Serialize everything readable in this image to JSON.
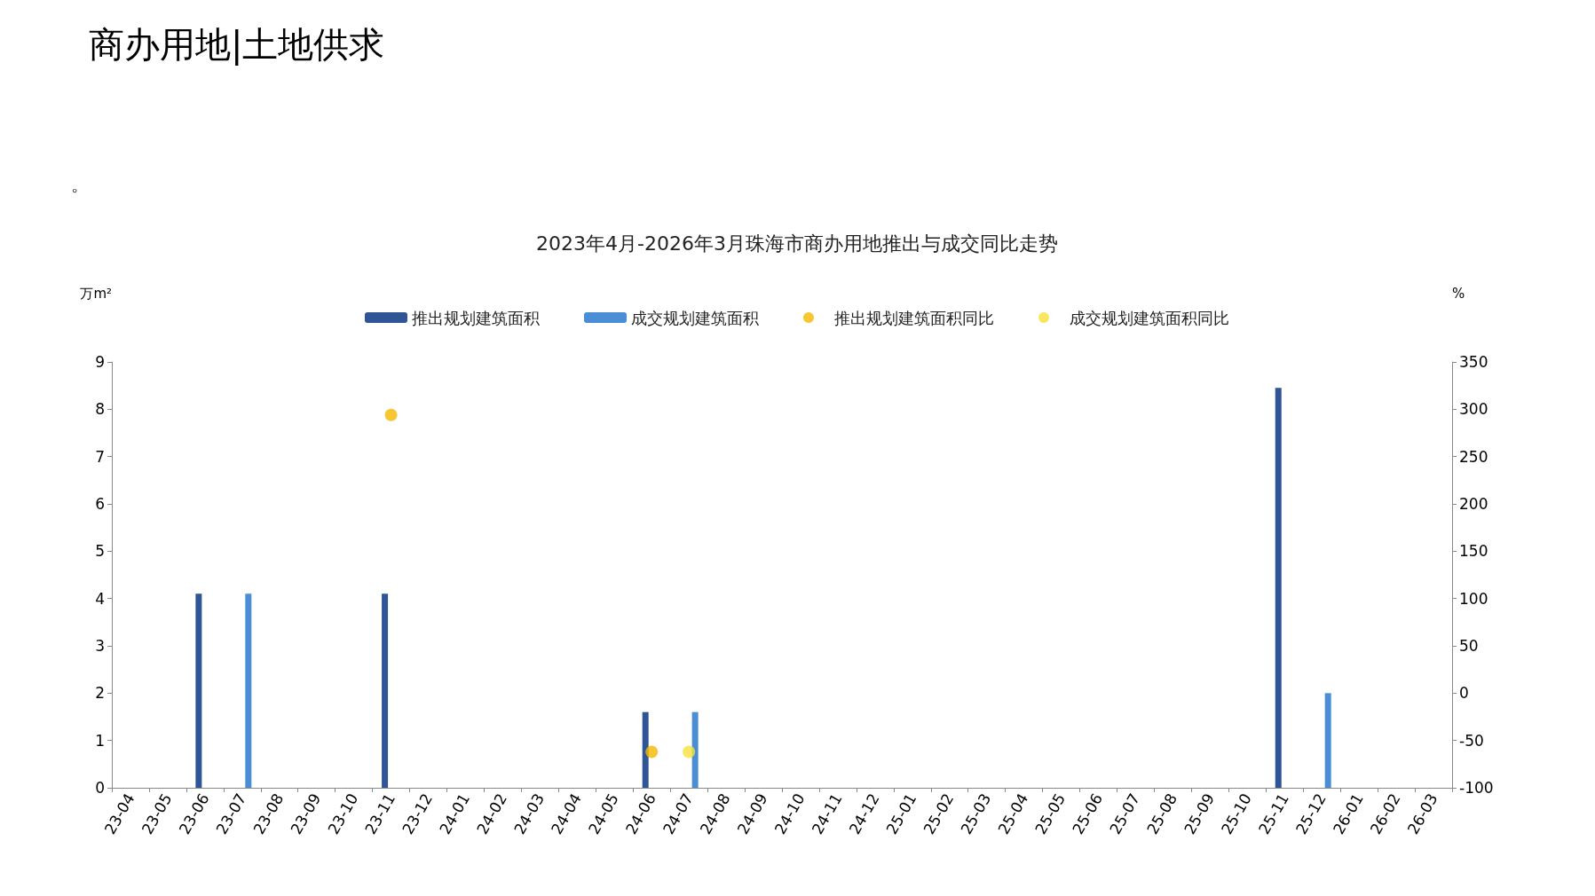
{
  "chart_data": {
    "type": "bar",
    "title": "2023年4月-2026年3月珠海市商办用地推出与成交同比走势",
    "annotations": [
      "商办用地|土地供求",
      "。"
    ],
    "ylabel": "万m²",
    "y2label": "%",
    "categories": [
      "23-04",
      "23-05",
      "23-06",
      "23-07",
      "23-08",
      "23-09",
      "23-10",
      "23-11",
      "23-12",
      "24-01",
      "24-02",
      "24-03",
      "24-04",
      "24-05",
      "24-06",
      "24-07",
      "24-08",
      "24-09",
      "24-10",
      "24-11",
      "24-12",
      "25-01",
      "25-02",
      "25-03",
      "25-04",
      "25-05",
      "25-06",
      "25-07",
      "25-08",
      "25-09",
      "25-10",
      "25-11",
      "25-12",
      "26-01",
      "26-02",
      "26-03"
    ],
    "series": [
      {
        "name": "推出规划建筑面积",
        "color": "#2f5597",
        "values": [
          null,
          null,
          4.1,
          null,
          null,
          null,
          null,
          4.1,
          null,
          null,
          null,
          null,
          null,
          null,
          1.6,
          null,
          null,
          null,
          null,
          null,
          null,
          null,
          null,
          null,
          null,
          null,
          null,
          null,
          null,
          null,
          null,
          8.45,
          null,
          null,
          null,
          null
        ]
      },
      {
        "name": "成交规划建筑面积",
        "color": "#4a8fd6",
        "values": [
          null,
          null,
          null,
          4.1,
          null,
          null,
          null,
          null,
          null,
          null,
          null,
          null,
          null,
          null,
          null,
          1.6,
          null,
          null,
          null,
          null,
          null,
          null,
          null,
          null,
          null,
          null,
          null,
          null,
          null,
          null,
          null,
          null,
          2.0,
          null,
          null,
          null
        ]
      },
      {
        "name": "推出规划建筑面积同比",
        "type": "scatter",
        "axis": "y2",
        "color": "#f5b800",
        "values": [
          null,
          null,
          null,
          null,
          null,
          null,
          null,
          294,
          null,
          null,
          null,
          null,
          null,
          null,
          -62,
          null,
          null,
          null,
          null,
          null,
          null,
          null,
          null,
          null,
          null,
          null,
          null,
          null,
          null,
          null,
          null,
          null,
          null,
          null,
          null,
          null
        ]
      },
      {
        "name": "成交规划建筑面积同比",
        "type": "scatter",
        "axis": "y2",
        "color": "#f7e03a",
        "values": [
          null,
          null,
          null,
          null,
          null,
          null,
          null,
          null,
          null,
          null,
          null,
          null,
          null,
          null,
          null,
          -62,
          null,
          null,
          null,
          null,
          null,
          null,
          null,
          null,
          null,
          null,
          null,
          null,
          null,
          null,
          null,
          null,
          null,
          null,
          null,
          null
        ]
      }
    ],
    "ylim": [
      0,
      9
    ],
    "yticks": [
      0,
      1,
      2,
      3,
      4,
      5,
      6,
      7,
      8,
      9
    ],
    "y2lim": [
      -100,
      350
    ],
    "y2ticks": [
      -100,
      -50,
      0,
      50,
      100,
      150,
      200,
      250,
      300,
      350
    ],
    "legend": "top",
    "grid": false,
    "marker": "circle"
  }
}
